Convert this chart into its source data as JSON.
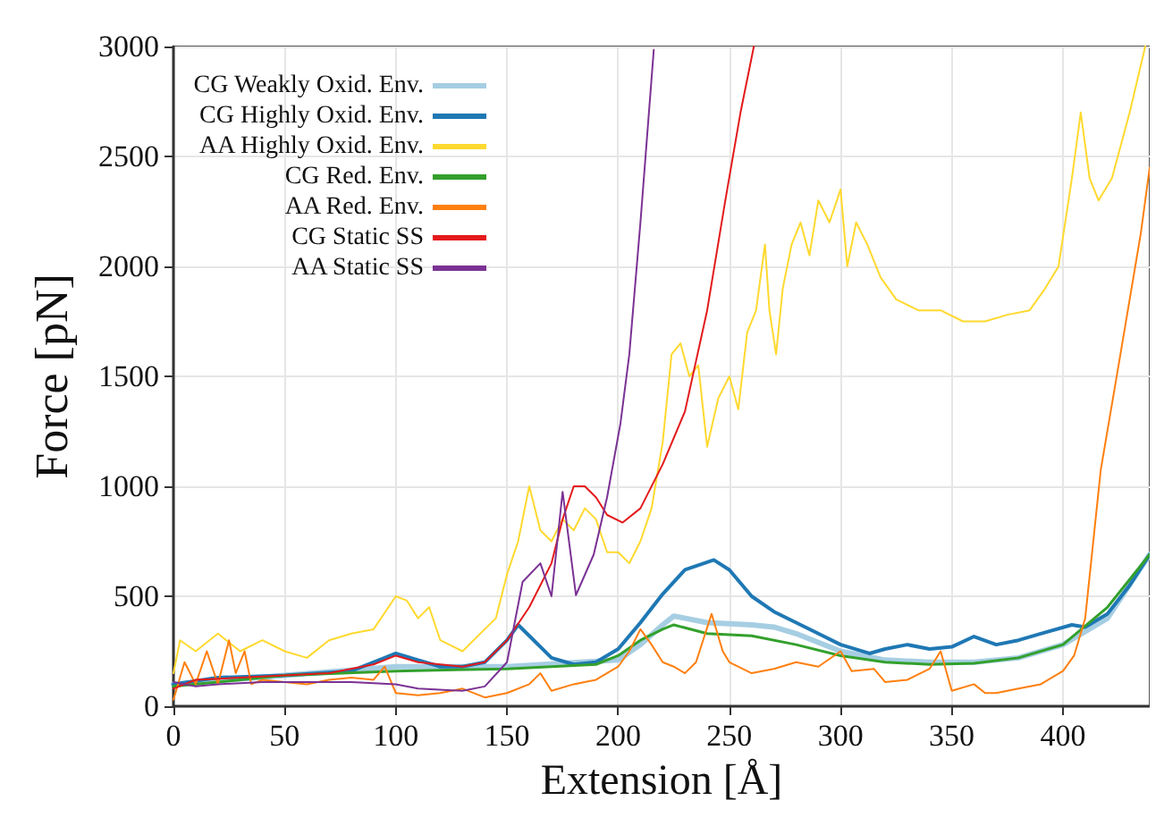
{
  "chart_data": {
    "type": "line",
    "xlabel": "Extension [Å]",
    "ylabel": "Force [pN]",
    "xlim": [
      0,
      439
    ],
    "ylim": [
      0,
      3000
    ],
    "xticks": [
      0,
      50,
      100,
      150,
      200,
      250,
      300,
      350,
      400
    ],
    "yticks": [
      0,
      500,
      1000,
      1500,
      2000,
      2500,
      3000
    ],
    "grid": true,
    "legend": "top left",
    "marker": "none",
    "line_style": "solid",
    "series": [
      {
        "name": "CG Weakly Oxid. Env.",
        "color": "#a6cee3",
        "x": [
          0,
          50,
          100,
          150,
          200,
          210,
          220,
          225,
          240,
          260,
          270,
          280,
          300,
          320,
          340,
          360,
          380,
          400,
          420,
          439
        ],
        "values": [
          100,
          140,
          180,
          180,
          210,
          280,
          370,
          410,
          380,
          370,
          360,
          330,
          250,
          210,
          200,
          200,
          220,
          280,
          400,
          690
        ]
      },
      {
        "name": "CG Highly Oxid. Env.",
        "color": "#1f78b4",
        "x": [
          0,
          20,
          50,
          80,
          95,
          100,
          110,
          120,
          130,
          140,
          150,
          155,
          160,
          170,
          180,
          190,
          200,
          210,
          220,
          230,
          243,
          250,
          260,
          270,
          280,
          290,
          300,
          313,
          320,
          330,
          340,
          350,
          360,
          370,
          380,
          390,
          404,
          410,
          420,
          430,
          439
        ],
        "values": [
          100,
          130,
          140,
          160,
          220,
          240,
          210,
          180,
          180,
          200,
          300,
          370,
          320,
          220,
          190,
          200,
          260,
          380,
          510,
          620,
          665,
          620,
          500,
          430,
          380,
          330,
          280,
          240,
          260,
          280,
          260,
          270,
          317,
          280,
          300,
          330,
          370,
          360,
          420,
          550,
          690
        ]
      },
      {
        "name": "AA Highly Oxid. Env.",
        "color": "#ffd92f",
        "x": [
          0,
          3,
          10,
          20,
          30,
          40,
          50,
          60,
          70,
          80,
          90,
          100,
          105,
          110,
          115,
          120,
          130,
          140,
          145,
          150,
          155,
          160,
          165,
          170,
          175,
          180,
          185,
          190,
          195,
          200,
          205,
          210,
          215,
          220,
          224,
          228,
          232,
          236,
          240,
          245,
          250,
          254,
          258,
          262,
          266,
          268,
          271,
          274,
          278,
          282,
          286,
          290,
          295,
          300,
          303,
          307,
          312,
          318,
          325,
          335,
          345,
          355,
          365,
          375,
          385,
          392,
          398,
          404,
          408,
          412,
          416,
          422,
          430,
          437
        ],
        "values": [
          150,
          300,
          250,
          330,
          250,
          300,
          250,
          220,
          300,
          330,
          350,
          500,
          480,
          400,
          450,
          300,
          250,
          350,
          400,
          600,
          750,
          1000,
          800,
          750,
          850,
          800,
          900,
          850,
          700,
          700,
          650,
          750,
          900,
          1200,
          1600,
          1650,
          1500,
          1550,
          1180,
          1400,
          1500,
          1350,
          1700,
          1800,
          2100,
          1800,
          1600,
          1900,
          2100,
          2200,
          2050,
          2300,
          2200,
          2350,
          2000,
          2200,
          2100,
          1950,
          1850,
          1800,
          1800,
          1750,
          1750,
          1780,
          1800,
          1900,
          2000,
          2400,
          2700,
          2400,
          2300,
          2400,
          2700,
          3000
        ]
      },
      {
        "name": "CG Red. Env.",
        "color": "#33a02c",
        "x": [
          0,
          50,
          100,
          150,
          190,
          200,
          210,
          220,
          225,
          240,
          260,
          280,
          300,
          320,
          340,
          360,
          380,
          400,
          420,
          439
        ],
        "values": [
          90,
          140,
          160,
          170,
          190,
          230,
          300,
          350,
          370,
          330,
          320,
          280,
          230,
          200,
          190,
          195,
          220,
          280,
          450,
          690
        ]
      },
      {
        "name": "AA Red. Env.",
        "color": "#ff7f0e",
        "x": [
          0,
          5,
          10,
          15,
          20,
          25,
          28,
          32,
          35,
          40,
          50,
          60,
          70,
          80,
          90,
          95,
          100,
          110,
          120,
          130,
          140,
          150,
          160,
          165,
          170,
          180,
          190,
          200,
          205,
          210,
          215,
          220,
          225,
          230,
          235,
          242,
          247,
          250,
          260,
          270,
          280,
          290,
          300,
          305,
          315,
          320,
          330,
          340,
          345,
          350,
          360,
          365,
          370,
          380,
          390,
          400,
          405,
          410,
          417,
          425,
          430,
          435,
          439
        ],
        "values": [
          30,
          200,
          100,
          250,
          100,
          300,
          150,
          250,
          100,
          120,
          110,
          100,
          120,
          130,
          120,
          180,
          60,
          50,
          60,
          80,
          40,
          60,
          100,
          150,
          70,
          100,
          120,
          180,
          250,
          350,
          280,
          200,
          180,
          150,
          200,
          420,
          250,
          200,
          150,
          170,
          200,
          180,
          250,
          160,
          170,
          110,
          120,
          170,
          250,
          70,
          100,
          60,
          60,
          80,
          100,
          160,
          230,
          400,
          1075,
          1550,
          1850,
          2150,
          2450
        ]
      },
      {
        "name": "CG Static SS",
        "color": "#e31a1c",
        "x": [
          0,
          10,
          30,
          50,
          70,
          90,
          100,
          110,
          130,
          140,
          150,
          160,
          170,
          175,
          180,
          185,
          190,
          195,
          202,
          210,
          220,
          230,
          240,
          248,
          255,
          261
        ],
        "values": [
          80,
          120,
          130,
          140,
          150,
          190,
          230,
          200,
          180,
          200,
          300,
          450,
          650,
          850,
          1000,
          1000,
          950,
          870,
          835,
          900,
          1100,
          1340,
          1800,
          2290,
          2700,
          3000
        ]
      },
      {
        "name": "AA Static SS",
        "color": "#7b3294",
        "x": [
          0,
          10,
          20,
          40,
          60,
          80,
          100,
          110,
          130,
          140,
          150,
          157,
          165,
          170,
          175,
          181,
          189,
          195,
          201,
          205,
          210,
          216
        ],
        "values": [
          110,
          90,
          100,
          110,
          110,
          110,
          100,
          80,
          70,
          90,
          200,
          565,
          650,
          500,
          975,
          505,
          690,
          950,
          1285,
          1600,
          2200,
          2985
        ]
      }
    ]
  }
}
